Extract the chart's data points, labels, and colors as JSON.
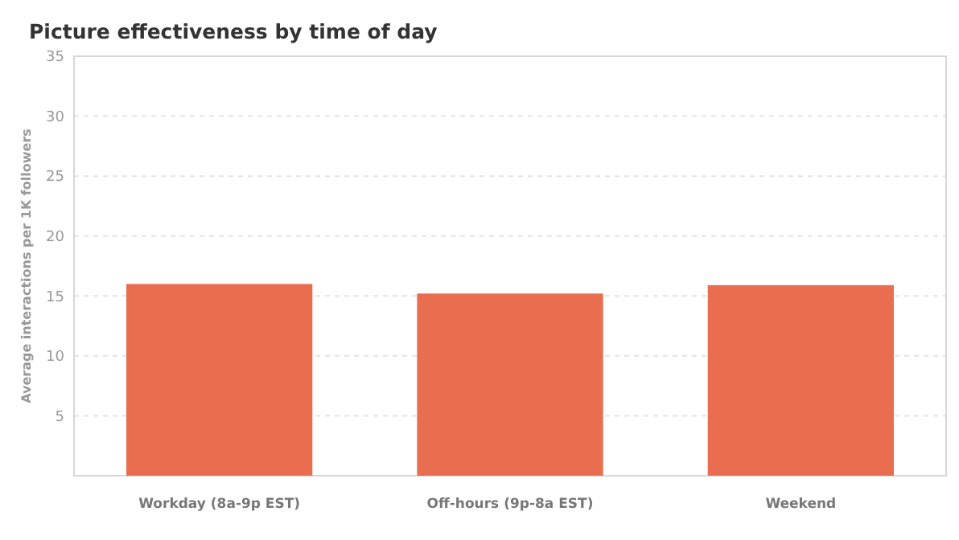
{
  "chart_data": {
    "type": "bar",
    "title": "Picture effectiveness by time of day",
    "ylabel": "Average interactions per 1K followers",
    "categories": [
      "Workday (8a-9p EST)",
      "Off-hours (9p-8a EST)",
      "Weekend"
    ],
    "values": [
      16,
      15.2,
      15.9
    ],
    "color": "#e96d4f",
    "ylim": [
      0,
      35
    ],
    "yticks": [
      5,
      10,
      15,
      20,
      25,
      30,
      35
    ],
    "grid": "y"
  }
}
